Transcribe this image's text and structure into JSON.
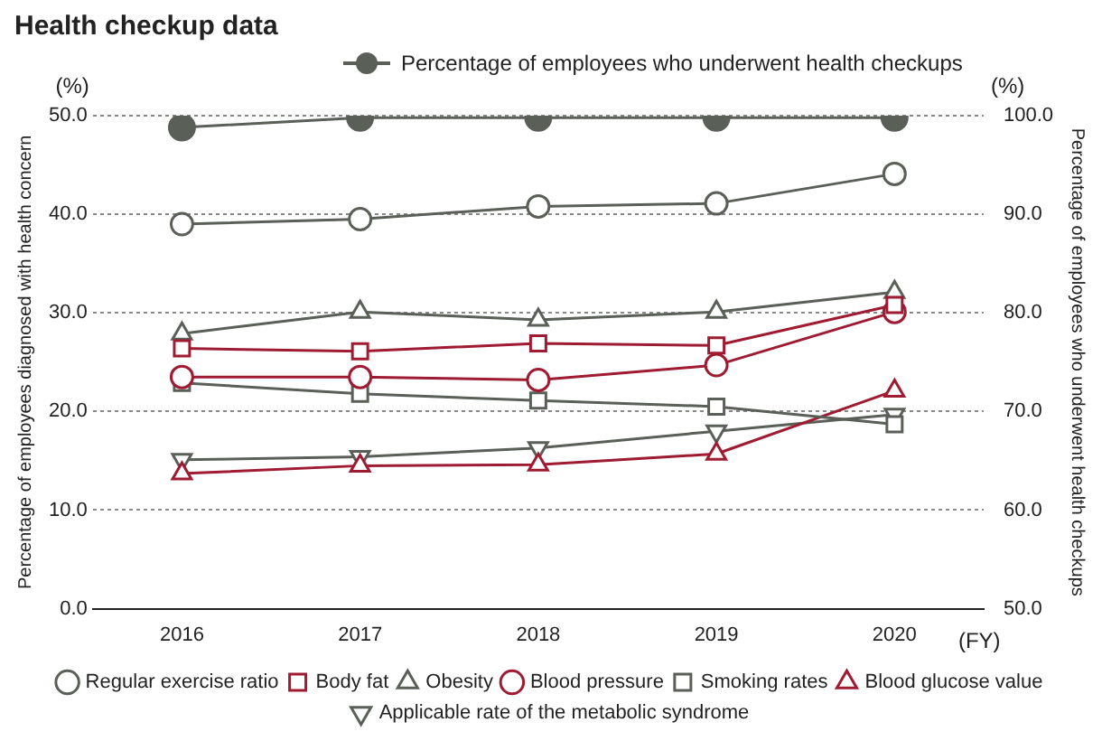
{
  "chart_data": {
    "type": "line",
    "title": "Health checkup data",
    "ylabel": "Percentage of employees diagnosed with health concern",
    "y2label": "Percentage of employees who underwent health checkups",
    "annotations": [
      "(%)",
      "(%)",
      "(FY)"
    ],
    "categories": [
      "2016",
      "2017",
      "2018",
      "2019",
      "2020"
    ],
    "ylim": [
      0,
      50
    ],
    "yticks": [
      {
        "value": 0,
        "label": "0.0"
      },
      {
        "value": 10,
        "label": "10.0"
      },
      {
        "value": 20,
        "label": "20.0"
      },
      {
        "value": 30,
        "label": "30.0"
      },
      {
        "value": 40,
        "label": "40.0"
      },
      {
        "value": 50,
        "label": "50.0"
      }
    ],
    "y2lim": [
      50,
      100
    ],
    "y2ticks": [
      {
        "value": 50,
        "label": "50.0"
      },
      {
        "value": 60,
        "label": "60.0"
      },
      {
        "value": 70,
        "label": "70.0"
      },
      {
        "value": 80,
        "label": "80.0"
      },
      {
        "value": 90,
        "label": "90.0"
      },
      {
        "value": 100,
        "label": "100.0"
      }
    ],
    "grid": "y",
    "legend": "bottom",
    "line_style": "solid",
    "series": [
      {
        "name": "Percentage of employees who underwent health checkups",
        "color": "#5a5f58",
        "axis": "y2",
        "marker": "circle",
        "values": [
          98.8,
          99.8,
          99.8,
          99.8,
          99.8
        ]
      },
      {
        "name": "Regular exercise ratio",
        "color": "#5a5f58",
        "marker": "circle",
        "values": [
          39.0,
          39.5,
          40.8,
          41.1,
          44.1
        ]
      },
      {
        "name": "Body fat",
        "color": "#9e1b32",
        "marker": "square",
        "values": [
          26.4,
          26.1,
          26.9,
          26.7,
          30.8
        ]
      },
      {
        "name": "Obesity",
        "color": "#5a5f58",
        "marker": "triangle",
        "values": [
          27.9,
          30.1,
          29.3,
          30.1,
          32.1
        ]
      },
      {
        "name": "Blood pressure",
        "color": "#9e1b32",
        "marker": "circle",
        "values": [
          23.5,
          23.5,
          23.2,
          24.7,
          30.1
        ]
      },
      {
        "name": "Smoking rates",
        "color": "#5a5f58",
        "marker": "square",
        "values": [
          22.9,
          21.8,
          21.1,
          20.5,
          18.7
        ]
      },
      {
        "name": "Blood glucose value",
        "color": "#9e1b32",
        "marker": "triangle",
        "values": [
          13.7,
          14.5,
          14.6,
          15.7,
          22.1
        ]
      },
      {
        "name": "Applicable rate of the metabolic syndrome",
        "color": "#5a5f58",
        "marker": "triangle-down",
        "values": [
          15.1,
          15.4,
          16.3,
          18.0,
          19.7
        ]
      }
    ]
  }
}
